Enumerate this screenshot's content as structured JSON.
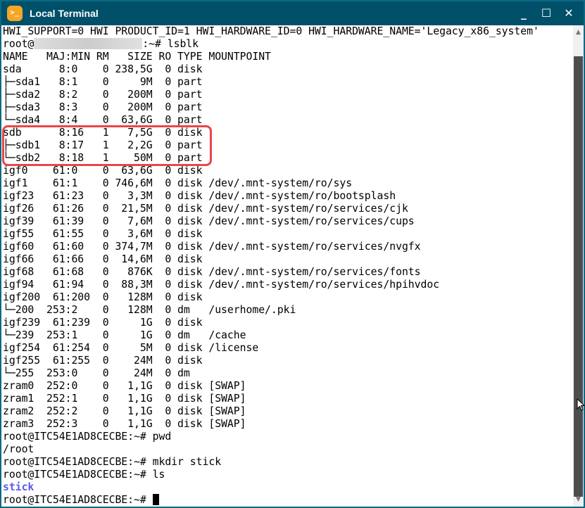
{
  "window": {
    "title": "Local Terminal",
    "app_icon": "terminal-icon",
    "minimize": "_",
    "maximize": "☐",
    "close": "✕"
  },
  "terminal": {
    "lines": [
      "HWI_SUPPORT=0 HWI PRODUCT_ID=1 HWI_HARDWARE_ID=0 HWI_HARDWARE_NAME='Legacy_x86_system'",
      "",
      "NAME   MAJ:MIN RM   SIZE RO TYPE MOUNTPOINT",
      "sda      8:0    0 238,5G  0 disk",
      "├─sda1   8:1    0     9M  0 part",
      "├─sda2   8:2    0   200M  0 part",
      "├─sda3   8:3    0   200M  0 part",
      "└─sda4   8:4    0  63,6G  0 part",
      "sdb      8:16   1   7,5G  0 disk",
      "├─sdb1   8:17   1   2,2G  0 part",
      "└─sdb2   8:18   1    50M  0 part",
      "igf0    61:0    0  63,6G  0 disk",
      "igf1    61:1    0 746,6M  0 disk /dev/.mnt-system/ro/sys",
      "igf23   61:23   0   3,3M  0 disk /dev/.mnt-system/ro/bootsplash",
      "igf26   61:26   0  21,5M  0 disk /dev/.mnt-system/ro/services/cjk",
      "igf39   61:39   0   7,6M  0 disk /dev/.mnt-system/ro/services/cups",
      "igf55   61:55   0   3,6M  0 disk",
      "igf60   61:60   0 374,7M  0 disk /dev/.mnt-system/ro/services/nvgfx",
      "igf66   61:66   0  14,6M  0 disk",
      "igf68   61:68   0   876K  0 disk /dev/.mnt-system/ro/services/fonts",
      "igf94   61:94   0  88,3M  0 disk /dev/.mnt-system/ro/services/hpihvdoc",
      "igf200  61:200  0   128M  0 disk",
      "└─200  253:2    0   128M  0 dm   /userhome/.pki",
      "igf239  61:239  0     1G  0 disk",
      "└─239  253:1    0     1G  0 dm   /cache",
      "igf254  61:254  0     5M  0 disk /license",
      "igf255  61:255  0    24M  0 disk",
      "└─255  253:0    0    24M  0 dm",
      "zram0  252:0    0   1,1G  0 disk [SWAP]",
      "zram1  252:1    0   1,1G  0 disk [SWAP]",
      "zram2  252:2    0   1,1G  0 disk [SWAP]",
      "zram3  252:3    0   1,1G  0 disk [SWAP]",
      "root@ITC54E1AD8CECBE:~# pwd",
      "/root",
      "root@ITC54E1AD8CECBE:~# mkdir stick",
      "root@ITC54E1AD8CECBE:~# ls",
      "",
      "root@ITC54E1AD8CECBE:~# "
    ],
    "prompt_user": "root@",
    "prompt_suffix": ":~# lsblk",
    "ls_output": "stick",
    "ls_output_color": "#5a5af0",
    "highlight_color": "#e8474b"
  }
}
